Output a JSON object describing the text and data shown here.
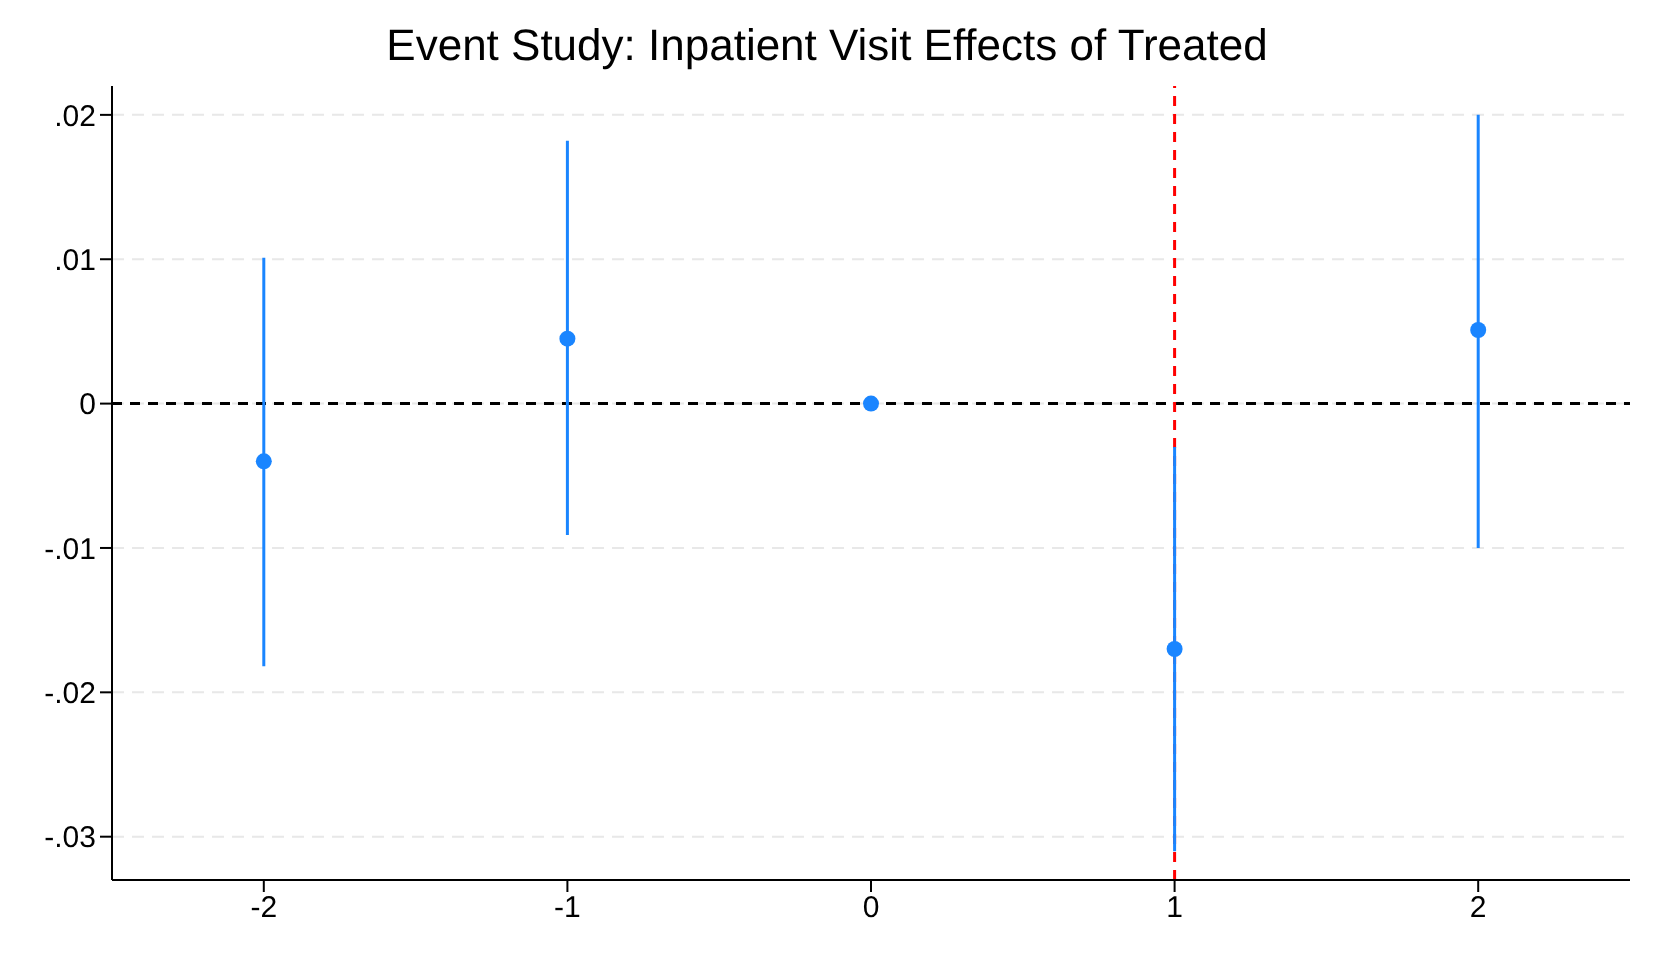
{
  "chart_data": {
    "type": "scatter",
    "title": "Event Study: Inpatient Visit Effects of Treated",
    "x": [
      -2,
      -1,
      0,
      1,
      2
    ],
    "values": [
      -0.004,
      0.0045,
      0,
      -0.017,
      0.0051
    ],
    "errors": [
      [
        -0.0182,
        0.0101
      ],
      [
        -0.0091,
        0.0182
      ],
      null,
      [
        -0.031,
        -0.003
      ],
      [
        -0.01,
        0.02
      ]
    ],
    "color": "#1a85ff",
    "marker": "circle",
    "xlim": [
      -2.5,
      2.5
    ],
    "xticks": [
      -2,
      -1,
      0,
      1,
      2
    ],
    "ylim": [
      -0.033,
      0.022
    ],
    "yticks": [
      {
        "value": -0.03,
        "label": "-.03"
      },
      {
        "value": -0.02,
        "label": "-.02"
      },
      {
        "value": -0.01,
        "label": "-.01"
      },
      0,
      {
        "value": 0.01,
        "label": ".01"
      },
      {
        "value": 0.02,
        "label": ".02"
      }
    ],
    "grid": "y",
    "ref_lines": [
      {
        "axis": "y",
        "value": 0,
        "color": "#000000",
        "line_style": "dashed"
      },
      {
        "axis": "x",
        "value": 1,
        "color": "#ff0000",
        "line_style": "dashed"
      }
    ]
  }
}
